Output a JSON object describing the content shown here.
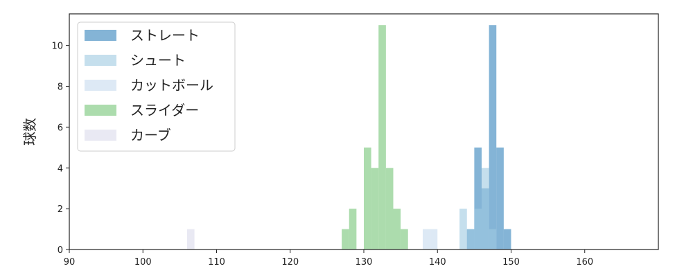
{
  "chart_data": {
    "type": "bar",
    "title": "",
    "xlabel": "",
    "ylabel": "球数",
    "xlim": [
      90,
      170
    ],
    "ylim": [
      0,
      11.55
    ],
    "xticks": [
      90,
      100,
      110,
      120,
      130,
      140,
      150,
      160
    ],
    "yticks": [
      0,
      2,
      4,
      6,
      8,
      10
    ],
    "bin_width": 1,
    "grid": false,
    "legend_position": "top-left",
    "series": [
      {
        "name": "ストレート",
        "color": "#1f77b4",
        "opacity": 0.55,
        "bins": [
          [
            144,
            1
          ],
          [
            145,
            5
          ],
          [
            146,
            3
          ],
          [
            147,
            11
          ],
          [
            148,
            5
          ],
          [
            149,
            1
          ]
        ]
      },
      {
        "name": "シュート",
        "color": "#9ecae1",
        "opacity": 0.6,
        "bins": [
          [
            143,
            2
          ],
          [
            144,
            1
          ],
          [
            145,
            2
          ],
          [
            146,
            4
          ],
          [
            147,
            1
          ]
        ]
      },
      {
        "name": "カットボール",
        "color": "#c6dbef",
        "opacity": 0.6,
        "bins": [
          [
            138,
            1
          ],
          [
            139,
            1
          ]
        ]
      },
      {
        "name": "スライダー",
        "color": "#74c476",
        "opacity": 0.6,
        "bins": [
          [
            127,
            1
          ],
          [
            128,
            2
          ],
          [
            130,
            5
          ],
          [
            131,
            4
          ],
          [
            132,
            11
          ],
          [
            133,
            4
          ],
          [
            134,
            2
          ],
          [
            135,
            1
          ]
        ]
      },
      {
        "name": "カーブ",
        "color": "#dadaeb",
        "opacity": 0.6,
        "bins": [
          [
            106,
            1
          ]
        ]
      }
    ]
  }
}
